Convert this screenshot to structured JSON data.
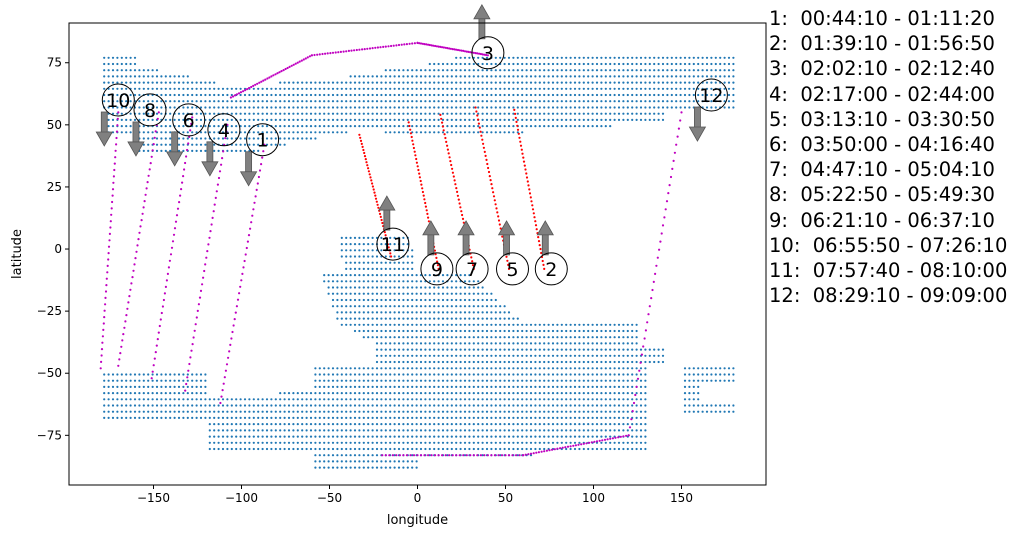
{
  "chart_data": {
    "type": "scatter",
    "xlabel": "longitude",
    "ylabel": "latitude",
    "xlim": [
      -198,
      198
    ],
    "ylim": [
      -95,
      91
    ],
    "xticks": [
      -150,
      -100,
      -50,
      0,
      50,
      100,
      150
    ],
    "yticks": [
      -75,
      -50,
      -25,
      0,
      25,
      50,
      75
    ],
    "xtick_labels": [
      "−150",
      "−100",
      "−50",
      "0",
      "50",
      "100",
      "150"
    ],
    "ytick_labels": [
      "−75",
      "−50",
      "−25",
      "0",
      "25",
      "50",
      "75"
    ],
    "grid": false,
    "colors": {
      "ground": "#1f77b4",
      "ascending_track": "#c000c0",
      "descending_track": "#ff0000",
      "arrow": "#808080"
    },
    "ground_coverage": {
      "description_visible": "dense blue dot grid (land/coverage mask)",
      "regions": [
        {
          "lon_range": [
            -180,
            180
          ],
          "lat_range": [
            38,
            78
          ],
          "approx": true
        },
        {
          "lon_range": [
            -60,
            140
          ],
          "lat_range": [
            -40,
            5
          ],
          "approx": true
        },
        {
          "lon_range": [
            -180,
            180
          ],
          "lat_range": [
            -87,
            -48
          ],
          "approx": true
        }
      ]
    },
    "tracks": [
      {
        "id": "1",
        "type": "ascending",
        "lon": [
          -112,
          -87
        ],
        "lat": [
          -62,
          42
        ]
      },
      {
        "id": "2",
        "type": "descending",
        "lon": [
          55,
          72
        ],
        "lat": [
          56,
          -8
        ]
      },
      {
        "id": "3",
        "type": "ascending",
        "lon": [
          -106,
          -60,
          0,
          40
        ],
        "lat": [
          61,
          78,
          83,
          78
        ]
      },
      {
        "id": "4",
        "type": "ascending",
        "lon": [
          -132,
          -108
        ],
        "lat": [
          -57,
          50
        ]
      },
      {
        "id": "5",
        "type": "descending",
        "lon": [
          33,
          52
        ],
        "lat": [
          57,
          -8
        ]
      },
      {
        "id": "6",
        "type": "ascending",
        "lon": [
          -151,
          -128
        ],
        "lat": [
          -52,
          53
        ]
      },
      {
        "id": "7",
        "type": "descending",
        "lon": [
          13,
          32
        ],
        "lat": [
          54,
          -8
        ]
      },
      {
        "id": "8",
        "type": "ascending",
        "lon": [
          -170,
          -147
        ],
        "lat": [
          -47,
          55
        ]
      },
      {
        "id": "9",
        "type": "descending",
        "lon": [
          -5,
          12
        ],
        "lat": [
          51,
          -8
        ]
      },
      {
        "id": "10",
        "type": "ascending",
        "lon": [
          -180,
          -170
        ],
        "lat": [
          -48,
          55
        ]
      },
      {
        "id": "11",
        "type": "descending",
        "lon": [
          -33,
          -15
        ],
        "lat": [
          46,
          -3
        ]
      },
      {
        "id": "12",
        "type": "ascending",
        "lon": [
          -20,
          60,
          120,
          150
        ],
        "lat": [
          -83,
          -83,
          -75,
          55
        ]
      }
    ],
    "markers": [
      {
        "label": "1",
        "lon": -88,
        "lat": 44,
        "arrow": "down"
      },
      {
        "label": "2",
        "lon": 76,
        "lat": -8,
        "arrow": "up"
      },
      {
        "label": "3",
        "lon": 40,
        "lat": 79,
        "arrow": "up"
      },
      {
        "label": "4",
        "lon": -110,
        "lat": 48,
        "arrow": "down"
      },
      {
        "label": "5",
        "lon": 54,
        "lat": -8,
        "arrow": "up"
      },
      {
        "label": "6",
        "lon": -130,
        "lat": 52,
        "arrow": "down"
      },
      {
        "label": "7",
        "lon": 31,
        "lat": -8,
        "arrow": "up"
      },
      {
        "label": "8",
        "lon": -152,
        "lat": 56,
        "arrow": "down"
      },
      {
        "label": "9",
        "lon": 11,
        "lat": -8,
        "arrow": "up"
      },
      {
        "label": "10",
        "lon": -170,
        "lat": 60,
        "arrow": "down"
      },
      {
        "label": "11",
        "lon": -14,
        "lat": 2,
        "arrow": "up"
      },
      {
        "label": "12",
        "lon": 167,
        "lat": 62,
        "arrow": "down"
      }
    ],
    "legend": [
      "1:  00:44:10 - 01:11:20",
      "2:  01:39:10 - 01:56:50",
      "3:  02:02:10 - 02:12:40",
      "4:  02:17:00 - 02:44:00",
      "5:  03:13:10 - 03:30:50",
      "6:  03:50:00 - 04:16:40",
      "7:  04:47:10 - 05:04:10",
      "8:  05:22:50 - 05:49:30",
      "9:  06:21:10 - 06:37:10",
      "10:  06:55:50 - 07:26:10",
      "11:  07:57:40 - 08:10:00",
      "12:  08:29:10 - 09:09:00"
    ]
  }
}
